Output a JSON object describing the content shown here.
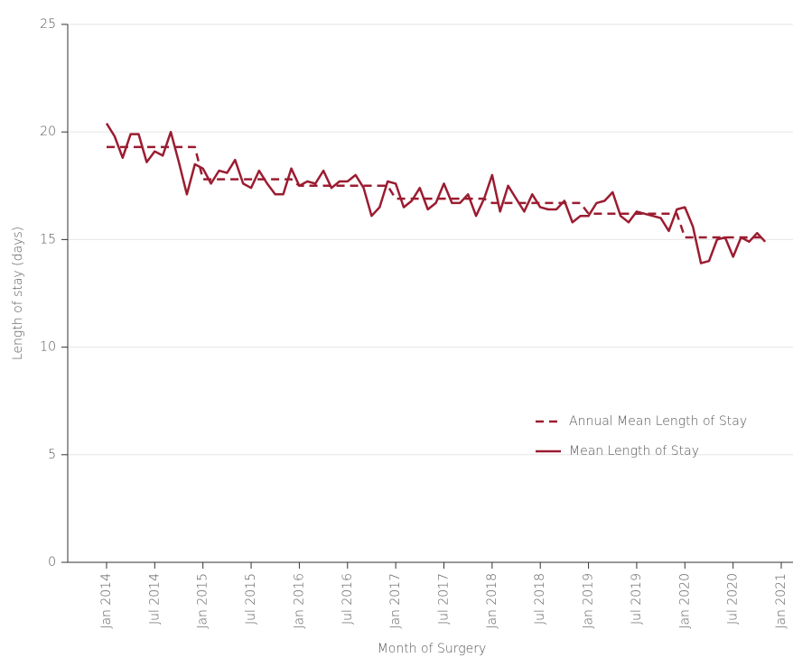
{
  "chart_data": {
    "type": "line",
    "y_label": "Length of stay (days)",
    "x_label": "Month of Surgery",
    "x": [
      "2014-01",
      "2014-02",
      "2014-03",
      "2014-04",
      "2014-05",
      "2014-06",
      "2014-07",
      "2014-08",
      "2014-09",
      "2014-10",
      "2014-11",
      "2014-12",
      "2015-01",
      "2015-02",
      "2015-03",
      "2015-04",
      "2015-05",
      "2015-06",
      "2015-07",
      "2015-08",
      "2015-09",
      "2015-10",
      "2015-11",
      "2015-12",
      "2016-01",
      "2016-02",
      "2016-03",
      "2016-04",
      "2016-05",
      "2016-06",
      "2016-07",
      "2016-08",
      "2016-09",
      "2016-10",
      "2016-11",
      "2016-12",
      "2017-01",
      "2017-02",
      "2017-03",
      "2017-04",
      "2017-05",
      "2017-06",
      "2017-07",
      "2017-08",
      "2017-09",
      "2017-10",
      "2017-11",
      "2017-12",
      "2018-01",
      "2018-02",
      "2018-03",
      "2018-04",
      "2018-05",
      "2018-06",
      "2018-07",
      "2018-08",
      "2018-09",
      "2018-10",
      "2018-11",
      "2018-12",
      "2019-01",
      "2019-02",
      "2019-03",
      "2019-04",
      "2019-05",
      "2019-06",
      "2019-07",
      "2019-08",
      "2019-09",
      "2019-10",
      "2019-11",
      "2019-12",
      "2020-01",
      "2020-02",
      "2020-03",
      "2020-04",
      "2020-05",
      "2020-06",
      "2020-07",
      "2020-08",
      "2020-09",
      "2020-10",
      "2020-11"
    ],
    "series": [
      {
        "name": "Annual Mean Length of Stay",
        "color": "#9b1c31",
        "dash": true,
        "values": [
          19.3,
          19.3,
          19.3,
          19.3,
          19.3,
          19.3,
          19.3,
          19.3,
          19.3,
          19.3,
          19.3,
          19.3,
          17.8,
          17.8,
          17.8,
          17.8,
          17.8,
          17.8,
          17.8,
          17.8,
          17.8,
          17.8,
          17.8,
          17.8,
          17.5,
          17.5,
          17.5,
          17.5,
          17.5,
          17.5,
          17.5,
          17.5,
          17.5,
          17.5,
          17.5,
          17.5,
          16.9,
          16.9,
          16.9,
          16.9,
          16.9,
          16.9,
          16.9,
          16.9,
          16.9,
          16.9,
          16.9,
          16.9,
          16.7,
          16.7,
          16.7,
          16.7,
          16.7,
          16.7,
          16.7,
          16.7,
          16.7,
          16.7,
          16.7,
          16.7,
          16.2,
          16.2,
          16.2,
          16.2,
          16.2,
          16.2,
          16.2,
          16.2,
          16.2,
          16.2,
          16.2,
          16.2,
          15.1,
          15.1,
          15.1,
          15.1,
          15.1,
          15.1,
          15.1,
          15.1,
          15.1,
          15.1,
          15.1
        ]
      },
      {
        "name": "Mean Length of Stay",
        "color": "#9b1c31",
        "dash": false,
        "values": [
          20.4,
          19.8,
          18.8,
          19.9,
          19.9,
          18.6,
          19.1,
          18.9,
          20.0,
          18.6,
          17.1,
          18.5,
          18.3,
          17.6,
          18.2,
          18.1,
          18.7,
          17.6,
          17.4,
          18.2,
          17.6,
          17.1,
          17.1,
          18.3,
          17.5,
          17.7,
          17.6,
          18.2,
          17.4,
          17.7,
          17.7,
          18.0,
          17.4,
          16.1,
          16.5,
          17.7,
          17.6,
          16.5,
          16.8,
          17.4,
          16.4,
          16.7,
          17.6,
          16.7,
          16.7,
          17.1,
          16.1,
          16.9,
          18.0,
          16.3,
          17.5,
          16.9,
          16.3,
          17.1,
          16.5,
          16.4,
          16.4,
          16.8,
          15.8,
          16.1,
          16.1,
          16.7,
          16.8,
          17.2,
          16.1,
          15.8,
          16.3,
          16.2,
          16.1,
          16.0,
          15.4,
          16.4,
          16.5,
          15.6,
          13.9,
          14.0,
          15.0,
          15.1,
          14.2,
          15.1,
          14.9,
          15.3,
          14.9
        ]
      }
    ],
    "xlim": [
      "2013-08",
      "2021-03"
    ],
    "xticks": [
      {
        "value": "2014-01",
        "label": "Jan 2014"
      },
      {
        "value": "2014-07",
        "label": "Jul 2014"
      },
      {
        "value": "2015-01",
        "label": "Jan 2015"
      },
      {
        "value": "2015-07",
        "label": "Jul 2015"
      },
      {
        "value": "2016-01",
        "label": "Jan 2016"
      },
      {
        "value": "2016-07",
        "label": "Jul 2016"
      },
      {
        "value": "2017-01",
        "label": "Jan 2017"
      },
      {
        "value": "2017-07",
        "label": "Jul 2017"
      },
      {
        "value": "2018-01",
        "label": "Jan 2018"
      },
      {
        "value": "2018-07",
        "label": "Jul 2018"
      },
      {
        "value": "2019-01",
        "label": "Jan 2019"
      },
      {
        "value": "2019-07",
        "label": "Jul 2019"
      },
      {
        "value": "2020-01",
        "label": "Jan 2020"
      },
      {
        "value": "2020-07",
        "label": "Jul 2020"
      },
      {
        "value": "2021-01",
        "label": "Jan 2021"
      }
    ],
    "ylim": [
      0,
      25
    ],
    "yticks": [
      0,
      5,
      10,
      15,
      20,
      25
    ],
    "grid": true,
    "legend": "lower right"
  }
}
